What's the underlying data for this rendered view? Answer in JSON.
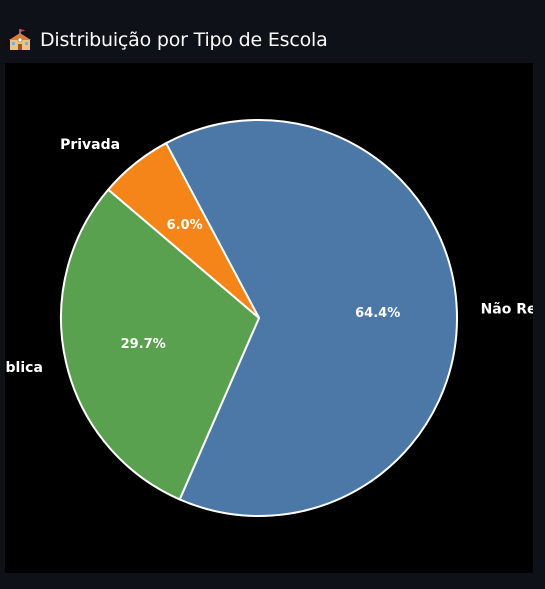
{
  "header": {
    "title": "Distribuição por Tipo de Escola",
    "icon": "school-icon"
  },
  "chart_data": {
    "type": "pie",
    "title": "",
    "categories": [
      "Não Respondeu",
      "Pública",
      "Privada"
    ],
    "values": [
      64.4,
      29.7,
      6.0
    ],
    "labels_pct": [
      "64.4%",
      "29.7%",
      "6.0%"
    ],
    "colors": [
      "#4c78a8",
      "#59a14f",
      "#f58518"
    ],
    "edge_color": "#ffffff",
    "background": "#000000",
    "legend": "none"
  }
}
